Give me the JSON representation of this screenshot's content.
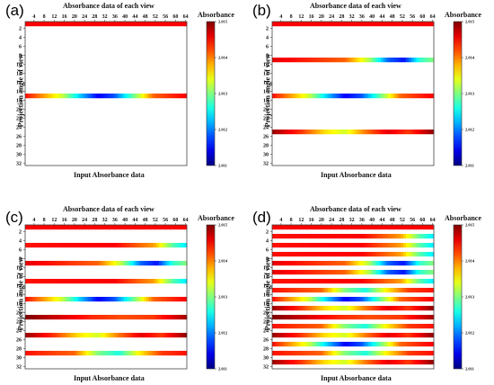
{
  "chart_data": [
    {
      "type": "heatmap",
      "panel_label": "(a)",
      "title": "Absorbance data of each view",
      "xlabel": "Input Absorbance data",
      "ylabel": "Projection angle of view",
      "colorbar_title": "Absorbance",
      "x_ticks": [
        "4",
        "8",
        "12",
        "16",
        "20",
        "24",
        "28",
        "32",
        "36",
        "40",
        "44",
        "48",
        "52",
        "56",
        "60",
        "64"
      ],
      "y_ticks": [
        "2",
        "4",
        "6",
        "8",
        "10",
        "12",
        "14",
        "16",
        "18",
        "20",
        "22",
        "24",
        "26",
        "28",
        "30",
        "32"
      ],
      "xlim": [
        1,
        64
      ],
      "ylim": [
        1,
        32
      ],
      "colorbar_ticks": [
        "2.011",
        "2.012",
        "2.013",
        "2.014",
        "2.015"
      ],
      "clim": [
        2.011,
        2.015
      ],
      "rows": [
        {
          "row": 1,
          "profile": "flat_red"
        },
        {
          "row": 17,
          "profile": "blue_center"
        }
      ]
    },
    {
      "type": "heatmap",
      "panel_label": "(b)",
      "title": "Absorbance data of each view",
      "xlabel": "Input Absorbance data",
      "ylabel": "Projection angle of view",
      "colorbar_title": "Absorbance",
      "x_ticks": [
        "4",
        "8",
        "12",
        "16",
        "20",
        "24",
        "28",
        "32",
        "36",
        "40",
        "44",
        "48",
        "52",
        "56",
        "60",
        "64"
      ],
      "y_ticks": [
        "2",
        "4",
        "6",
        "8",
        "10",
        "12",
        "14",
        "16",
        "18",
        "20",
        "22",
        "24",
        "26",
        "28",
        "30",
        "32"
      ],
      "xlim": [
        1,
        64
      ],
      "ylim": [
        1,
        32
      ],
      "colorbar_ticks": [
        "2.011",
        "2.012",
        "2.013",
        "2.014",
        "2.015"
      ],
      "clim": [
        2.011,
        2.015
      ],
      "rows": [
        {
          "row": 1,
          "profile": "flat_red"
        },
        {
          "row": 9,
          "profile": "blue_right"
        },
        {
          "row": 17,
          "profile": "blue_center"
        },
        {
          "row": 25,
          "profile": "green_center"
        }
      ]
    },
    {
      "type": "heatmap",
      "panel_label": "(c)",
      "title": "Absorbance data of each view",
      "xlabel": "Input Absorbance data",
      "ylabel": "Projection angle of view",
      "colorbar_title": "Absorbance",
      "x_ticks": [
        "4",
        "8",
        "12",
        "16",
        "20",
        "24",
        "28",
        "32",
        "36",
        "40",
        "44",
        "48",
        "52",
        "56",
        "60",
        "64"
      ],
      "y_ticks": [
        "2",
        "4",
        "6",
        "8",
        "10",
        "12",
        "14",
        "16",
        "18",
        "20",
        "22",
        "24",
        "26",
        "28",
        "30",
        "32"
      ],
      "xlim": [
        1,
        64
      ],
      "ylim": [
        1,
        32
      ],
      "colorbar_ticks": [
        "2.011",
        "2.012",
        "2.013",
        "2.014",
        "2.015"
      ],
      "clim": [
        2.011,
        2.015
      ],
      "rows": [
        {
          "row": 1,
          "profile": "flat_red"
        },
        {
          "row": 5,
          "profile": "cyan_end"
        },
        {
          "row": 9,
          "profile": "blue_right"
        },
        {
          "row": 13,
          "profile": "cyan_end"
        },
        {
          "row": 17,
          "profile": "blue_center"
        },
        {
          "row": 21,
          "profile": "dark_left"
        },
        {
          "row": 25,
          "profile": "green_center"
        },
        {
          "row": 29,
          "profile": "cyan_mid"
        }
      ]
    },
    {
      "type": "heatmap",
      "panel_label": "(d)",
      "title": "Absorbance data of each view",
      "xlabel": "Input Absorbance data",
      "ylabel": "Projection angle of view",
      "colorbar_title": "Absorbance",
      "x_ticks": [
        "4",
        "8",
        "12",
        "16",
        "20",
        "24",
        "28",
        "32",
        "36",
        "40",
        "44",
        "48",
        "52",
        "56",
        "60",
        "64"
      ],
      "y_ticks": [
        "2",
        "4",
        "6",
        "8",
        "10",
        "12",
        "14",
        "16",
        "18",
        "20",
        "22",
        "24",
        "26",
        "28",
        "30",
        "32"
      ],
      "xlim": [
        1,
        64
      ],
      "ylim": [
        1,
        32
      ],
      "colorbar_ticks": [
        "2.011",
        "2.012",
        "2.013",
        "2.014",
        "2.015"
      ],
      "clim": [
        2.011,
        2.015
      ],
      "rows": [
        {
          "row": 1,
          "profile": "flat_red"
        },
        {
          "row": 3,
          "profile": "cyan_end"
        },
        {
          "row": 5,
          "profile": "cyan_end"
        },
        {
          "row": 7,
          "profile": "cyan_end"
        },
        {
          "row": 9,
          "profile": "blue_right"
        },
        {
          "row": 11,
          "profile": "blue_right"
        },
        {
          "row": 13,
          "profile": "cyan_end"
        },
        {
          "row": 15,
          "profile": "cyan_mid"
        },
        {
          "row": 17,
          "profile": "blue_center"
        },
        {
          "row": 19,
          "profile": "green_center"
        },
        {
          "row": 21,
          "profile": "dark_left"
        },
        {
          "row": 23,
          "profile": "cyan_mid"
        },
        {
          "row": 25,
          "profile": "green_center"
        },
        {
          "row": 27,
          "profile": "blue_center"
        },
        {
          "row": 29,
          "profile": "cyan_mid"
        },
        {
          "row": 31,
          "profile": "green_center"
        }
      ]
    }
  ]
}
